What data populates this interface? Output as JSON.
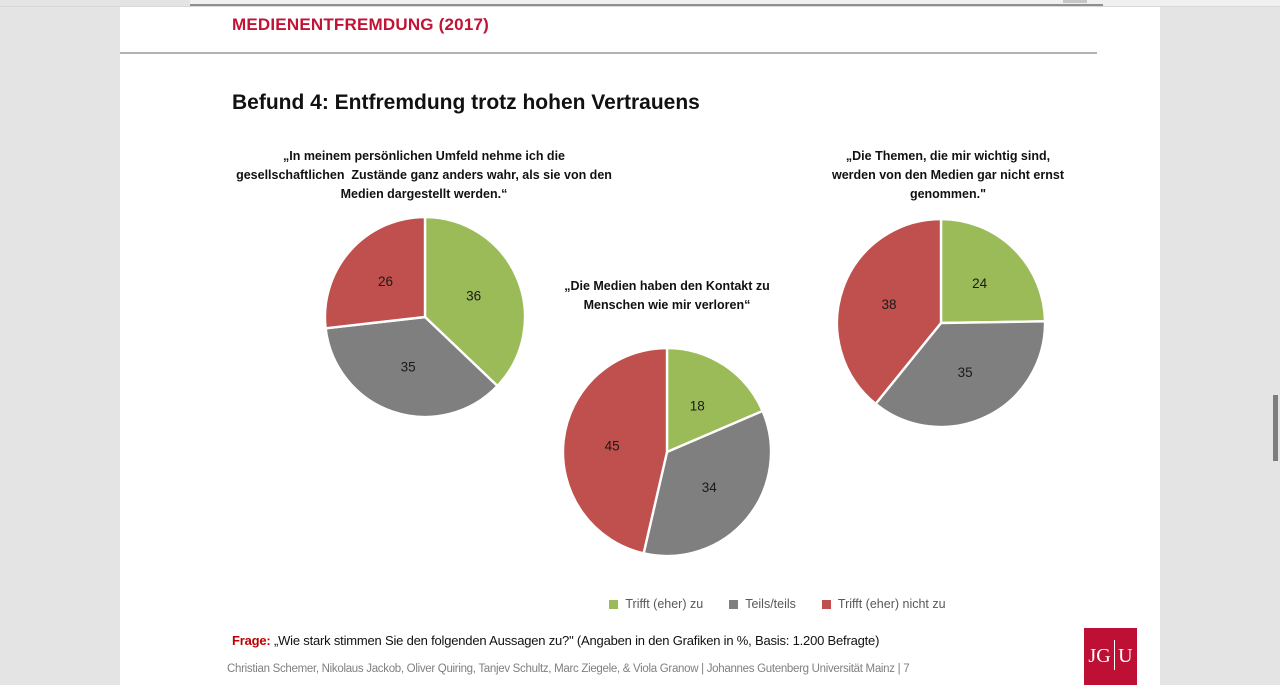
{
  "page": {
    "header": "MEDIENENTFREMDUNG (2017)",
    "title": "Befund 4: Entfremdung trotz hohen Vertrauens",
    "question_label": "Frage:",
    "question_text": " „Wie stark stimmen Sie den folgenden Aussagen zu?\" (Angaben in den Grafiken in %, Basis: 1.200 Befragte)",
    "footer": "Christian Schemer, Nikolaus Jackob, Oliver Quiring, Tanjev Schultz, Marc Ziegele, & Viola Granow | Johannes Gutenberg Universität Mainz | 7",
    "logo_left": "JG",
    "logo_right": "U"
  },
  "colors": {
    "agree_green": "#9bbb59",
    "neutral_gray": "#7f7f7f",
    "disagree_red": "#c0504d",
    "header_red": "#c11335",
    "question_red": "#c00000",
    "logo_red": "#be0f34",
    "legend_text": "#595959"
  },
  "legend": [
    {
      "label": "Trifft (eher) zu",
      "color": "#9bbb59"
    },
    {
      "label": "Teils/teils",
      "color": "#7f7f7f"
    },
    {
      "label": "Trifft (eher) nicht zu",
      "color": "#c0504d"
    }
  ],
  "chart_data": [
    {
      "type": "pie",
      "title": "„In meinem persönlichen Umfeld nehme ich die gesellschaftlichen Zustände ganz anders wahr, als sie von den Medien dargestellt werden.“",
      "title_lines": [
        "„In meinem persönlichen Umfeld nehme ich die",
        "gesellschaftlichen  Zustände ganz anders wahr, als sie von den",
        "Medien dargestellt werden.“"
      ],
      "categories": [
        "Trifft (eher) zu",
        "Teils/teils",
        "Trifft (eher) nicht zu"
      ],
      "values": [
        36,
        35,
        26
      ],
      "colors": [
        "#9bbb59",
        "#7f7f7f",
        "#c0504d"
      ],
      "unit": "%"
    },
    {
      "type": "pie",
      "title": "„Die Medien haben den Kontakt zu Menschen wie mir verloren“",
      "title_lines": [
        "„Die Medien haben den Kontakt zu",
        "Menschen wie mir verloren“"
      ],
      "categories": [
        "Trifft (eher) zu",
        "Teils/teils",
        "Trifft (eher) nicht zu"
      ],
      "values": [
        18,
        34,
        45
      ],
      "colors": [
        "#9bbb59",
        "#7f7f7f",
        "#c0504d"
      ],
      "unit": "%"
    },
    {
      "type": "pie",
      "title": "„Die Themen, die mir wichtig sind, werden von den Medien gar nicht ernst genommen.\"",
      "title_lines": [
        "„Die Themen, die mir wichtig sind,",
        "werden von den Medien gar nicht ernst",
        "genommen.\""
      ],
      "categories": [
        "Trifft (eher) zu",
        "Teils/teils",
        "Trifft (eher) nicht zu"
      ],
      "values": [
        24,
        35,
        38
      ],
      "colors": [
        "#9bbb59",
        "#7f7f7f",
        "#c0504d"
      ],
      "unit": "%"
    }
  ]
}
